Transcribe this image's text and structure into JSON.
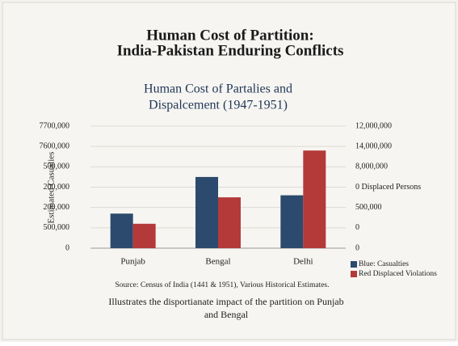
{
  "heading": [
    "Human Cost of Partition:",
    "India-Pakistan Enduring Conflicts"
  ],
  "chart_data": {
    "type": "bar",
    "title": [
      "Human Cost of Partalies and",
      "Dispalcement (1947-1951)"
    ],
    "y_label": "Estimated Casualies",
    "categories": [
      "Punjab",
      "Bengal",
      "Delhi"
    ],
    "series": [
      {
        "name": "Blue: Casualties",
        "color": "#2c4a6e",
        "values": [
          1.7,
          3.5,
          2.6
        ]
      },
      {
        "name": "Red Displaced Violations",
        "color": "#b43a3a",
        "values": [
          1.2,
          2.5,
          4.8
        ]
      }
    ],
    "ylim": [
      0,
      6
    ],
    "yticks": [
      {
        "value": 0,
        "label": "0"
      },
      {
        "value": 1,
        "label": "500,000"
      },
      {
        "value": 2,
        "label": "200,000"
      },
      {
        "value": 3,
        "label": "200,000"
      },
      {
        "value": 4,
        "label": "500,000"
      },
      {
        "value": 5,
        "label": "7600,000"
      },
      {
        "value": 6,
        "label": "7700,000"
      }
    ],
    "y2lim": [
      0,
      6
    ],
    "y2ticks": [
      {
        "value": 0,
        "label": "0"
      },
      {
        "value": 1,
        "label": "0"
      },
      {
        "value": 2,
        "label": "500,000"
      },
      {
        "value": 3,
        "label": "0 Displaced Persons"
      },
      {
        "value": 4,
        "label": "8,000,000"
      },
      {
        "value": 5,
        "label": "14,000,000"
      },
      {
        "value": 6,
        "label": "12,000,000"
      }
    ],
    "grid": true,
    "source": "Source: Census of India (1441 & 1951), Various Historical Estimates.",
    "caption": [
      "Illustrates the disportianate impact of the partition on Punjab",
      "and Bengal"
    ]
  }
}
